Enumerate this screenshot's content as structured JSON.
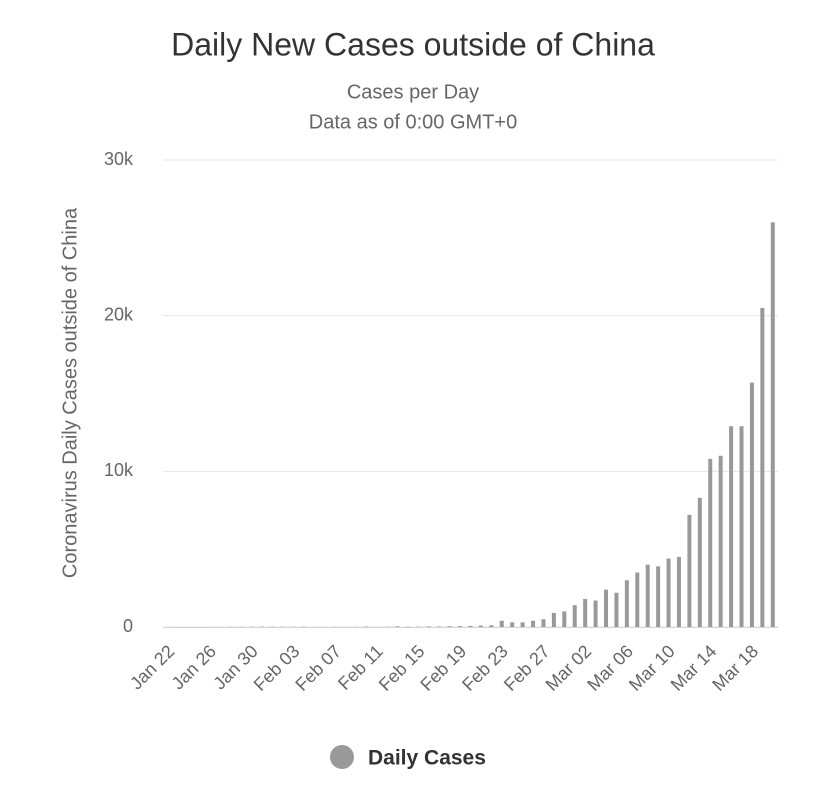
{
  "chart_data": {
    "type": "bar",
    "title": "Daily New Cases outside of China",
    "subtitle": [
      "Cases per Day",
      "Data as of 0:00 GMT+0"
    ],
    "y_label": "Coronavirus Daily Cases outside of China",
    "categories": [
      "Jan 22",
      null,
      null,
      null,
      "Jan 26",
      null,
      null,
      null,
      "Jan 30",
      null,
      null,
      null,
      "Feb 03",
      null,
      null,
      null,
      "Feb 07",
      null,
      null,
      null,
      "Feb 11",
      null,
      null,
      null,
      "Feb 15",
      null,
      null,
      null,
      "Feb 19",
      null,
      null,
      null,
      "Feb 23",
      null,
      null,
      null,
      "Feb 27",
      null,
      null,
      null,
      "Mar 02",
      null,
      null,
      null,
      "Mar 06",
      null,
      null,
      null,
      "Mar 10",
      null,
      null,
      null,
      "Mar 14",
      null,
      null,
      null,
      "Mar 18",
      null,
      null
    ],
    "series": [
      {
        "name": "Daily Cases",
        "color": "#999999",
        "values": [
          0,
          1,
          2,
          3,
          8,
          9,
          12,
          14,
          20,
          25,
          18,
          22,
          15,
          20,
          10,
          8,
          12,
          5,
          12,
          28,
          10,
          15,
          42,
          22,
          20,
          40,
          35,
          50,
          60,
          70,
          90,
          110,
          400,
          300,
          300,
          400,
          500,
          900,
          1000,
          1400,
          1800,
          1700,
          2400,
          2200,
          3000,
          3500,
          4000,
          3900,
          4400,
          4500,
          7200,
          8300,
          10800,
          11000,
          12900,
          12900,
          15700,
          20500,
          26000
        ]
      }
    ],
    "ylim": [
      0,
      30000
    ],
    "yticks": [
      0,
      {
        "value": 10000,
        "label": "10k"
      },
      {
        "value": 20000,
        "label": "20k"
      },
      {
        "value": 30000,
        "label": "30k"
      }
    ],
    "grid": true,
    "legend": "bottom"
  }
}
